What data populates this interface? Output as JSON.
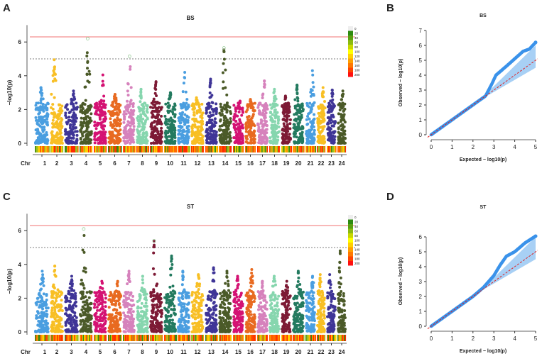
{
  "chart_data": [
    {
      "type": "scatter",
      "subtype": "manhattan",
      "panel": "A",
      "title": "BS",
      "ylabel": "−log10(p)",
      "xlabel_prefix": "Chr",
      "ylim": [
        0,
        7
      ],
      "yticks": [
        0,
        2,
        4,
        6
      ],
      "thresholds": {
        "bonferroni": 6.3,
        "suggestive": 5
      },
      "chromosomes": [
        "1",
        "2",
        "3",
        "4",
        "5",
        "6",
        "7",
        "8",
        "9",
        "10",
        "11",
        "12",
        "13",
        "14",
        "15",
        "16",
        "17",
        "18",
        "19",
        "20",
        "21",
        "22",
        "23",
        "24"
      ],
      "chr_weights": [
        22,
        20,
        21,
        20,
        20,
        21,
        19,
        19,
        20,
        19,
        19,
        20,
        19,
        20,
        17,
        17,
        17,
        17,
        16,
        18,
        16,
        14,
        15,
        14
      ],
      "peaks": [
        3.3,
        4.95,
        3.1,
        6.2,
        4.05,
        2.9,
        5.15,
        3.2,
        3.65,
        3.0,
        4.2,
        2.7,
        3.8,
        5.65,
        2.5,
        2.6,
        3.7,
        3.2,
        2.8,
        3.45,
        4.3,
        3.3,
        3.15,
        3.1
      ],
      "colors": [
        "#4a9ee0",
        "#f8bf24",
        "#3f3597",
        "#4b5a28",
        "#d41273",
        "#e86a20",
        "#d682bc",
        "#86d6ae",
        "#7d1a35",
        "#237a5f",
        "#4a9ee0",
        "#f8bf24",
        "#3f3597",
        "#4b5a28",
        "#d41273",
        "#e86a20",
        "#d682bc",
        "#86d6ae",
        "#7d1a35",
        "#237a5f",
        "#4a9ee0",
        "#f8bf24",
        "#3f3597",
        "#4b5a28"
      ],
      "density_legend": [
        "0",
        "20",
        "40",
        "60",
        "80",
        "100",
        "120",
        "140",
        "160",
        "180",
        "200"
      ]
    },
    {
      "type": "scatter",
      "subtype": "manhattan",
      "panel": "C",
      "title": "ST",
      "ylabel": "−log10(p)",
      "xlabel_prefix": "Chr",
      "ylim": [
        0,
        7
      ],
      "yticks": [
        0,
        2,
        4,
        6
      ],
      "thresholds": {
        "bonferroni": 6.3,
        "suggestive": 5
      },
      "peaks": [
        3.6,
        3.9,
        3.3,
        6.1,
        3.0,
        3.0,
        3.6,
        3.3,
        5.4,
        4.5,
        3.6,
        3.4,
        3.8,
        3.6,
        3.3,
        3.7,
        3.0,
        3.3,
        3.0,
        3.6,
        3.3,
        3.4,
        3.4,
        4.8
      ]
    },
    {
      "type": "scatter",
      "subtype": "qq",
      "panel": "B",
      "title": "BS",
      "xlabel": "Expected − log10(p)",
      "ylabel": "Observed − log10(p)",
      "xlim": [
        0,
        5
      ],
      "ylim": [
        0,
        7
      ],
      "xticks": [
        0,
        1,
        2,
        3,
        4,
        5
      ],
      "yticks": [
        0,
        1,
        2,
        3,
        4,
        5,
        6,
        7
      ],
      "observed_curve": [
        [
          0,
          0
        ],
        [
          1,
          1
        ],
        [
          2,
          2
        ],
        [
          2.6,
          2.6
        ],
        [
          2.9,
          3.4
        ],
        [
          3.1,
          4.0
        ],
        [
          3.6,
          4.6
        ],
        [
          4.0,
          5.1
        ],
        [
          4.4,
          5.6
        ],
        [
          4.7,
          5.75
        ],
        [
          5,
          6.2
        ]
      ]
    },
    {
      "type": "scatter",
      "subtype": "qq",
      "panel": "D",
      "title": "ST",
      "xlabel": "Expected − log10(p)",
      "ylabel": "Observed − log10(p)",
      "xlim": [
        0,
        5
      ],
      "ylim": [
        0,
        7
      ],
      "xticks": [
        0,
        1,
        2,
        3,
        4,
        5
      ],
      "yticks": [
        0,
        1,
        2,
        3,
        4,
        5,
        6
      ],
      "observed_curve": [
        [
          0,
          0
        ],
        [
          1,
          1
        ],
        [
          2,
          2
        ],
        [
          2.5,
          2.6
        ],
        [
          3.0,
          3.4
        ],
        [
          3.3,
          4.1
        ],
        [
          3.6,
          4.7
        ],
        [
          4.0,
          5.0
        ],
        [
          4.5,
          5.6
        ],
        [
          5,
          6.05
        ]
      ]
    }
  ],
  "labels": {
    "A": "A",
    "B": "B",
    "C": "C",
    "D": "D"
  }
}
